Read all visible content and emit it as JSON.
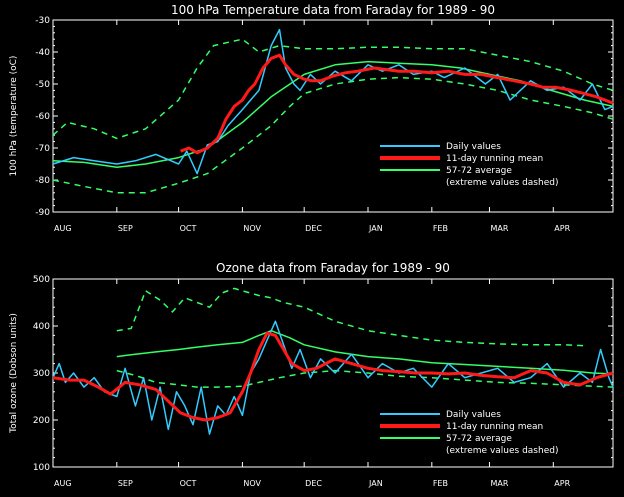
{
  "chart_data": [
    {
      "type": "line",
      "title": "100 hPa Temperature data from Faraday for 1989 - 90",
      "ylabel": "100 hPa (temperature (oC)",
      "ylim": [
        -90,
        -30
      ],
      "yticks": [
        -30,
        -40,
        -50,
        -60,
        -70,
        -80,
        -90
      ],
      "months": [
        "AUG",
        "SEP",
        "OCT",
        "NOV",
        "DEC",
        "JAN",
        "FEB",
        "MAR",
        "APR"
      ],
      "legend": [
        "Daily values",
        "11-day running mean",
        "57-72 average",
        "(extreme values dashed)"
      ],
      "colors": {
        "daily": "#33ccff",
        "mean": "#ff1a1a",
        "avg": "#33ff66"
      },
      "series": [
        {
          "name": "57-72 average",
          "style": "solid",
          "x": [
            0,
            15,
            31,
            45,
            61,
            75,
            92,
            106,
            122,
            137,
            153,
            168,
            184,
            198,
            212,
            227,
            242,
            258,
            272
          ],
          "y": [
            -74,
            -74.5,
            -76,
            -75,
            -73,
            -70,
            -62,
            -54,
            -47,
            -44,
            -43,
            -43.5,
            -44,
            -45,
            -47,
            -49,
            -52,
            -55,
            -57
          ]
        },
        {
          "name": "57-72 maximum",
          "style": "dashed",
          "x": [
            0,
            7,
            20,
            31,
            45,
            61,
            70,
            78,
            92,
            100,
            110,
            122,
            137,
            153,
            168,
            184,
            200,
            216,
            232,
            248,
            262,
            272
          ],
          "y": [
            -66,
            -62,
            -64,
            -67,
            -64,
            -55,
            -45,
            -38,
            -36,
            -40,
            -38,
            -39,
            -39,
            -38.5,
            -38.5,
            -39,
            -39,
            -41,
            -43,
            -46,
            -50,
            -52
          ]
        },
        {
          "name": "57-72 minimum",
          "style": "dashed",
          "x": [
            0,
            15,
            31,
            45,
            61,
            75,
            92,
            106,
            115,
            122,
            137,
            153,
            168,
            184,
            200,
            216,
            232,
            248,
            262,
            272
          ],
          "y": [
            -80,
            -82,
            -84,
            -84,
            -81,
            -78,
            -70,
            -63,
            -57,
            -53,
            -50,
            -48.5,
            -48,
            -48.5,
            -50,
            -52,
            -55,
            -57,
            -59,
            -61
          ]
        },
        {
          "name": "Daily values",
          "style": "solid",
          "x": [
            0,
            10,
            20,
            31,
            40,
            50,
            61,
            65,
            70,
            75,
            80,
            85,
            92,
            96,
            100,
            103,
            106,
            110,
            113,
            117,
            120,
            125,
            130,
            137,
            145,
            153,
            160,
            168,
            175,
            184,
            190,
            200,
            210,
            216,
            222,
            232,
            240,
            248,
            256,
            262,
            268,
            272
          ],
          "y": [
            -75,
            -73,
            -74,
            -75,
            -74,
            -72,
            -75,
            -71,
            -78,
            -69,
            -68,
            -63,
            -58,
            -55,
            -52,
            -45,
            -38,
            -33,
            -45,
            -50,
            -52,
            -47,
            -50,
            -46,
            -49,
            -44,
            -46,
            -44,
            -47,
            -46,
            -48,
            -45,
            -50,
            -47,
            -55,
            -49,
            -52,
            -51,
            -55,
            -50,
            -58,
            -57
          ]
        },
        {
          "name": "11-day running mean",
          "style": "solid",
          "x": [
            62,
            66,
            70,
            75,
            80,
            84,
            88,
            92,
            95,
            98,
            102,
            106,
            110,
            113,
            117,
            122,
            126,
            130,
            136,
            142,
            148,
            152,
            156,
            162,
            168,
            175,
            184,
            192,
            200,
            208,
            216,
            224,
            232,
            238,
            244,
            252,
            258,
            264,
            268,
            272
          ],
          "y": [
            -71,
            -70,
            -71.5,
            -70,
            -67,
            -61,
            -57,
            -55,
            -52,
            -50,
            -45,
            -42,
            -41,
            -44,
            -47,
            -48.5,
            -49,
            -49,
            -47.5,
            -46.5,
            -46,
            -45.5,
            -45,
            -45.5,
            -46,
            -46,
            -46.5,
            -46,
            -47,
            -47,
            -48,
            -49,
            -50,
            -51,
            -51,
            -52,
            -53,
            -54,
            -55,
            -56
          ]
        }
      ]
    },
    {
      "type": "line",
      "title": "Ozone data from Faraday for 1989 - 90",
      "ylabel": "Total ozone (Dobson units)",
      "ylim": [
        100,
        500
      ],
      "yticks": [
        500,
        400,
        300,
        200,
        100
      ],
      "months": [
        "AUG",
        "SEP",
        "OCT",
        "NOV",
        "DEC",
        "JAN",
        "FEB",
        "MAR",
        "APR"
      ],
      "legend": [
        "Daily values",
        "11-day running mean",
        "57-72 average",
        "(extreme values dashed)"
      ],
      "colors": {
        "daily": "#33ccff",
        "mean": "#ff1a1a",
        "avg": "#33ff66"
      },
      "series": [
        {
          "name": "57-72 average",
          "style": "solid",
          "x": [
            31,
            40,
            50,
            61,
            70,
            80,
            92,
            100,
            106,
            115,
            122,
            137,
            153,
            168,
            184,
            200,
            216,
            232,
            248,
            262,
            272
          ],
          "y": [
            335,
            340,
            345,
            350,
            355,
            360,
            365,
            380,
            390,
            375,
            360,
            345,
            335,
            330,
            322,
            318,
            314,
            310,
            306,
            300,
            298
          ]
        },
        {
          "name": "57-72 maximum",
          "style": "dashed",
          "x": [
            31,
            38,
            45,
            52,
            58,
            64,
            70,
            76,
            82,
            88,
            92,
            100,
            106,
            112,
            122,
            137,
            153,
            168,
            184,
            200,
            216,
            232,
            248,
            258
          ],
          "y": [
            390,
            395,
            475,
            455,
            430,
            460,
            450,
            440,
            470,
            480,
            475,
            465,
            460,
            450,
            440,
            410,
            390,
            380,
            370,
            365,
            362,
            360,
            360,
            358
          ]
        },
        {
          "name": "57-72 minimum",
          "style": "dashed",
          "x": [
            31,
            40,
            50,
            61,
            70,
            80,
            92,
            100,
            110,
            122,
            137,
            153,
            168,
            184,
            200,
            216,
            232,
            248,
            262,
            272
          ],
          "y": [
            305,
            295,
            280,
            275,
            270,
            270,
            272,
            280,
            290,
            300,
            305,
            300,
            293,
            290,
            285,
            280,
            278,
            275,
            272,
            270
          ]
        },
        {
          "name": "Daily values",
          "style": "solid",
          "x": [
            0,
            3,
            6,
            10,
            15,
            20,
            25,
            31,
            35,
            40,
            44,
            48,
            52,
            56,
            60,
            64,
            68,
            72,
            76,
            80,
            84,
            88,
            92,
            96,
            100,
            104,
            108,
            112,
            116,
            120,
            125,
            130,
            137,
            145,
            153,
            160,
            168,
            175,
            184,
            192,
            200,
            208,
            216,
            224,
            232,
            240,
            248,
            256,
            262,
            266,
            270,
            272
          ],
          "y": [
            290,
            320,
            280,
            300,
            270,
            290,
            260,
            250,
            310,
            230,
            290,
            200,
            270,
            180,
            260,
            230,
            190,
            270,
            170,
            230,
            210,
            250,
            210,
            300,
            330,
            370,
            410,
            360,
            310,
            350,
            290,
            330,
            300,
            340,
            290,
            320,
            300,
            310,
            270,
            320,
            290,
            300,
            310,
            280,
            290,
            320,
            270,
            300,
            280,
            350,
            290,
            270
          ]
        },
        {
          "name": "11-day running mean",
          "style": "solid",
          "x": [
            0,
            8,
            15,
            22,
            28,
            35,
            42,
            50,
            56,
            62,
            68,
            74,
            80,
            86,
            92,
            96,
            100,
            104,
            108,
            112,
            116,
            122,
            128,
            137,
            145,
            153,
            160,
            168,
            176,
            184,
            192,
            200,
            208,
            216,
            224,
            232,
            240,
            248,
            256,
            264,
            272
          ],
          "y": [
            290,
            285,
            285,
            270,
            255,
            280,
            275,
            265,
            240,
            215,
            205,
            200,
            205,
            215,
            260,
            300,
            350,
            385,
            380,
            350,
            320,
            305,
            310,
            330,
            320,
            310,
            305,
            303,
            300,
            300,
            298,
            300,
            295,
            292,
            290,
            305,
            300,
            280,
            275,
            290,
            300
          ]
        }
      ]
    }
  ]
}
